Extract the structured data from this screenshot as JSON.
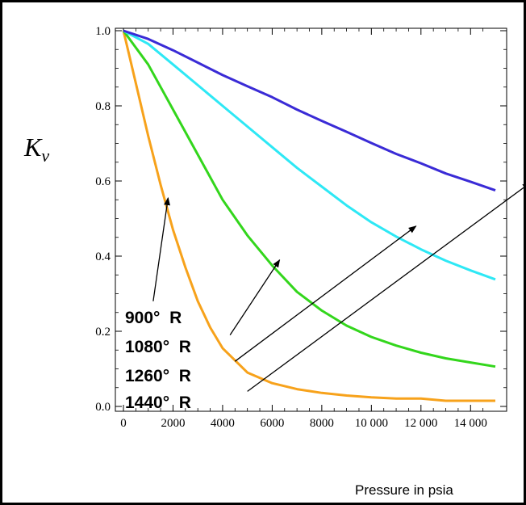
{
  "chart_data": {
    "type": "line",
    "title": "",
    "ylabel": "K",
    "ylabel_subscript": "v",
    "xlabel": "Pressure in psia",
    "xlim": [
      0,
      15000
    ],
    "ylim": [
      0,
      1.0
    ],
    "xticks": [
      0,
      2000,
      4000,
      6000,
      8000,
      10000,
      12000,
      14000
    ],
    "xtick_labels": [
      "0",
      "2000",
      "4000",
      "6000",
      "8000",
      "10 000",
      "12 000",
      "14 000"
    ],
    "yticks": [
      0.0,
      0.2,
      0.4,
      0.6,
      0.8,
      1.0
    ],
    "ytick_labels": [
      "0.0",
      "0.2",
      "0.4",
      "0.6",
      "0.8",
      "1.0"
    ],
    "grid": false,
    "series": [
      {
        "name": "900° R",
        "color": "#f7a21b",
        "x": [
          0,
          500,
          1000,
          1500,
          2000,
          2500,
          3000,
          3500,
          4000,
          5000,
          6000,
          7000,
          8000,
          9000,
          10000,
          11000,
          12000,
          13000,
          14000,
          15000
        ],
        "y": [
          1.0,
          0.86,
          0.72,
          0.59,
          0.47,
          0.37,
          0.28,
          0.21,
          0.155,
          0.09,
          0.062,
          0.046,
          0.036,
          0.029,
          0.024,
          0.021,
          0.021,
          0.015,
          0.015,
          0.015
        ]
      },
      {
        "name": "1080° R",
        "color": "#33d61c",
        "x": [
          0,
          1000,
          2000,
          3000,
          4000,
          5000,
          6000,
          7000,
          8000,
          9000,
          10000,
          11000,
          12000,
          13000,
          14000,
          15000
        ],
        "y": [
          1.0,
          0.91,
          0.79,
          0.67,
          0.55,
          0.455,
          0.375,
          0.305,
          0.255,
          0.215,
          0.185,
          0.162,
          0.143,
          0.128,
          0.117,
          0.106
        ]
      },
      {
        "name": "1260° R",
        "color": "#2ee8f5",
        "x": [
          0,
          1000,
          2000,
          3000,
          4000,
          5000,
          6000,
          7000,
          8000,
          9000,
          10000,
          11000,
          12000,
          13000,
          14000,
          15000
        ],
        "y": [
          1.0,
          0.965,
          0.91,
          0.855,
          0.8,
          0.745,
          0.69,
          0.635,
          0.585,
          0.535,
          0.49,
          0.452,
          0.418,
          0.388,
          0.362,
          0.338
        ]
      },
      {
        "name": "1440° R",
        "color": "#3a2bd6",
        "x": [
          0,
          1000,
          2000,
          3000,
          4000,
          5000,
          6000,
          7000,
          8000,
          9000,
          10000,
          11000,
          12000,
          13000,
          14000,
          15000
        ],
        "y": [
          1.0,
          0.978,
          0.948,
          0.915,
          0.882,
          0.852,
          0.823,
          0.79,
          0.76,
          0.731,
          0.701,
          0.672,
          0.647,
          0.62,
          0.598,
          0.575
        ]
      }
    ],
    "annotations": [
      {
        "text": "900°  R",
        "arrow_from": [
          1200,
          0.28
        ],
        "arrow_to": [
          1800,
          0.555
        ]
      },
      {
        "text": "1080°  R",
        "arrow_from": [
          4300,
          0.19
        ],
        "arrow_to": [
          6300,
          0.39
        ]
      },
      {
        "text": "1260°  R",
        "arrow_from": [
          4500,
          0.12
        ],
        "arrow_to": [
          11800,
          0.48
        ]
      },
      {
        "text": "1440°  R",
        "arrow_from": [
          5000,
          0.04
        ],
        "arrow_to": [
          16400,
          0.595
        ]
      }
    ]
  }
}
